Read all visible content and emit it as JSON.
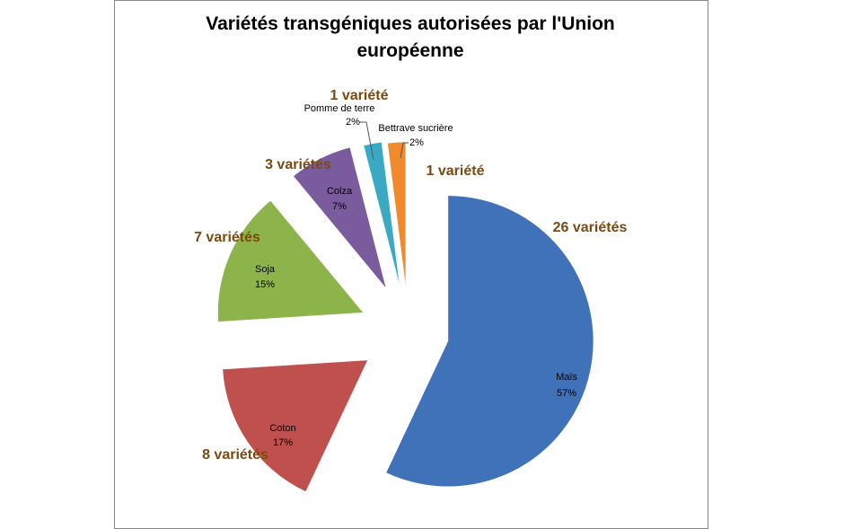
{
  "chart_data": {
    "type": "pie",
    "title": "Variétés transgéniques autorisées par l'Union européenne",
    "categories": [
      "Maïs",
      "Coton",
      "Soja",
      "Colza",
      "Pomme de terre",
      "Bettrave sucrière"
    ],
    "values": [
      57,
      17,
      15,
      7,
      2,
      2
    ],
    "value_labels": [
      "57%",
      "17%",
      "15%",
      "7%",
      "2%",
      "2%"
    ],
    "annotations": [
      "26 variétés",
      "8 variétés",
      "7 variétés",
      "3 variétés",
      "1 variété",
      "1 variété"
    ],
    "colors": [
      "#3f72b8",
      "#c0504d",
      "#8db44a",
      "#7a5b9e",
      "#3aa9c4",
      "#f08a2c"
    ]
  }
}
